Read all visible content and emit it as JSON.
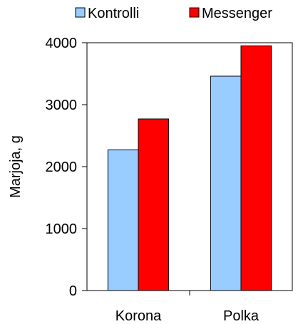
{
  "chart_data": {
    "type": "bar",
    "title": "",
    "xlabel": "",
    "ylabel": "Marjoja, g",
    "categories": [
      "Korona",
      "Polka"
    ],
    "series": [
      {
        "name": "Kontrolli",
        "values": [
          2270,
          3460
        ],
        "color": "#99ccff"
      },
      {
        "name": "Messenger",
        "values": [
          2770,
          3950
        ],
        "color": "#ff0000"
      }
    ],
    "ylim": [
      0,
      4000
    ],
    "yticks": [
      0,
      1000,
      2000,
      3000,
      4000
    ],
    "grid": false,
    "legend_position": "top"
  }
}
